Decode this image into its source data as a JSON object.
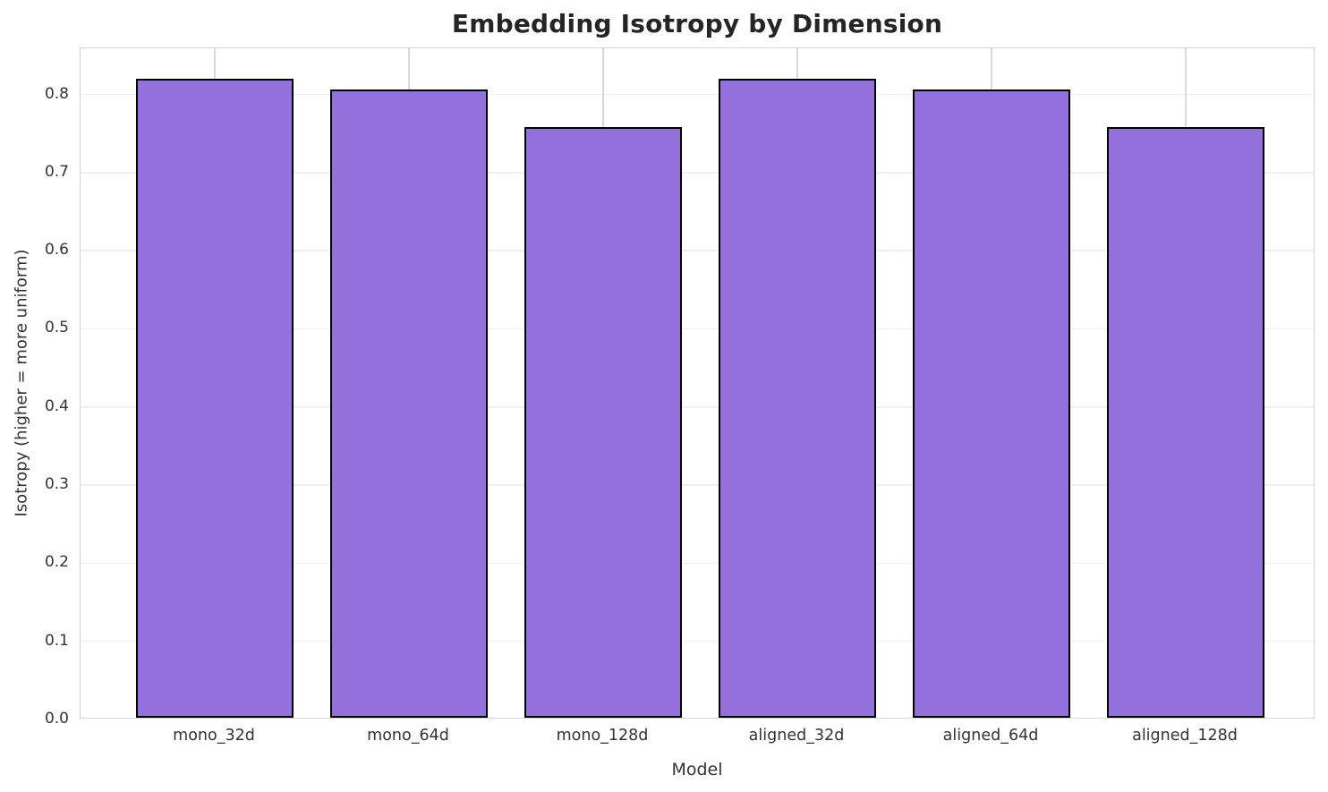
{
  "chart_data": {
    "type": "bar",
    "title": "Embedding Isotropy by Dimension",
    "xlabel": "Model",
    "ylabel": "Isotropy (higher = more uniform)",
    "categories": [
      "mono_32d",
      "mono_64d",
      "mono_128d",
      "aligned_32d",
      "aligned_64d",
      "aligned_128d"
    ],
    "values": [
      0.818,
      0.804,
      0.756,
      0.818,
      0.804,
      0.756
    ],
    "ylim": [
      0.0,
      0.859
    ],
    "yticks": [
      "0.0",
      "0.1",
      "0.2",
      "0.3",
      "0.4",
      "0.5",
      "0.6",
      "0.7",
      "0.8"
    ],
    "grid": true,
    "legend": "none",
    "colors": {
      "bar_fill": "#9370DB",
      "bar_edge": "#000000",
      "hgrid": "#efefef",
      "vgrid": "#d9d9d9",
      "spine": "#d4d4d4",
      "title_text": "#252525",
      "tick_text": "#333333"
    }
  }
}
